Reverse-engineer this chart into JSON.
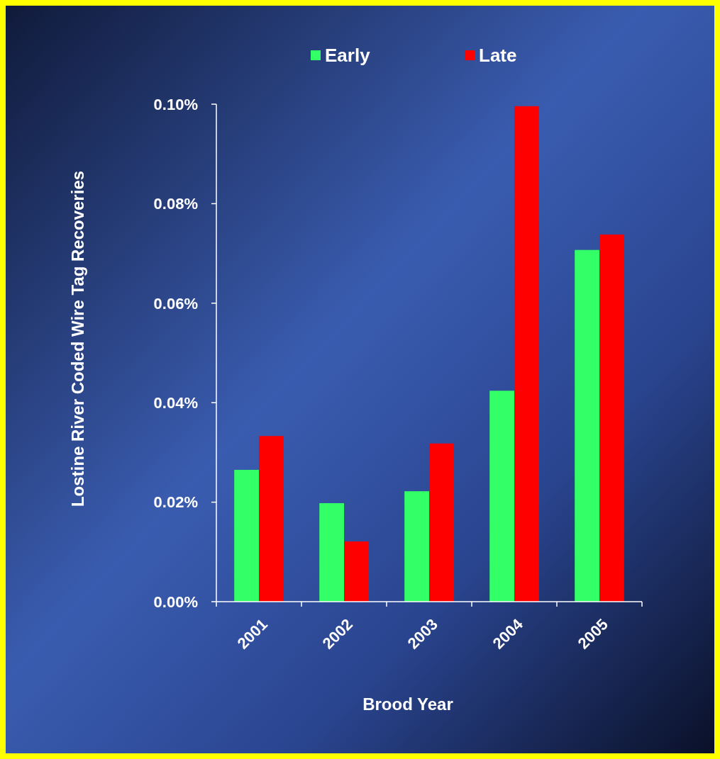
{
  "chart_data": {
    "type": "bar",
    "xlabel": "Brood Year",
    "ylabel": "Lostine River Coded Wire Tag Recoveries",
    "categories": [
      "2001",
      "2002",
      "2003",
      "2004",
      "2005"
    ],
    "series": [
      {
        "name": "Early",
        "color": "#33ff66",
        "values": [
          0.0265,
          0.0198,
          0.0222,
          0.0424,
          0.0707
        ]
      },
      {
        "name": "Late",
        "color": "#ff0000",
        "values": [
          0.0333,
          0.0121,
          0.0318,
          0.0996,
          0.0738
        ]
      }
    ],
    "ylim": [
      0,
      0.1
    ],
    "yticks": [
      {
        "value": 0,
        "label": "0.00%"
      },
      {
        "value": 0.02,
        "label": "0.02%"
      },
      {
        "value": 0.04,
        "label": "0.04%"
      },
      {
        "value": 0.06,
        "label": "0.06%"
      },
      {
        "value": 0.08,
        "label": "0.08%"
      },
      {
        "value": 0.1,
        "label": "0.10%"
      }
    ],
    "grid": false,
    "legend": "top"
  }
}
